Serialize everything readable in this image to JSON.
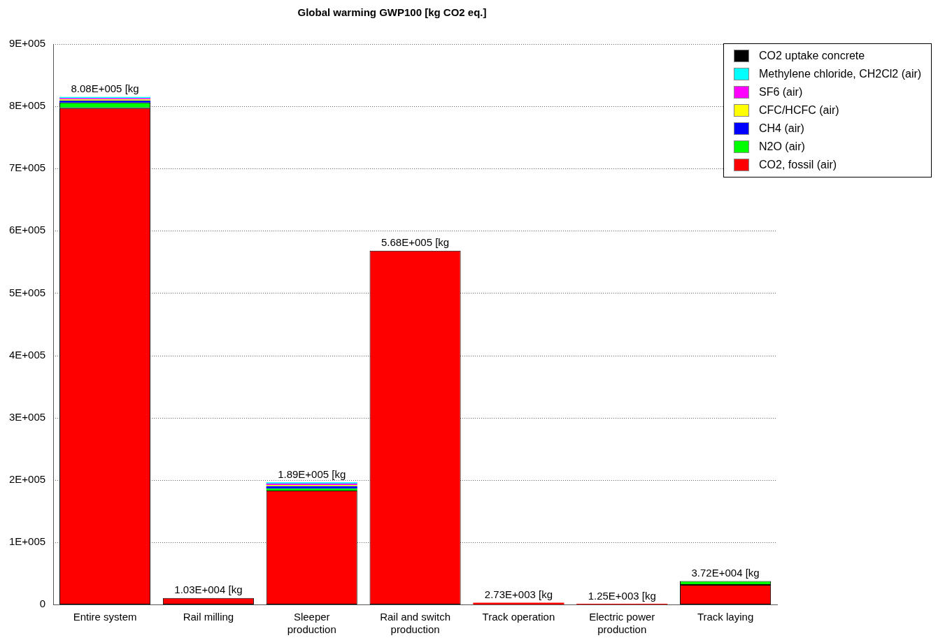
{
  "chart_data": {
    "type": "bar",
    "title": "Global warming GWP100 [kg CO2 eq.]",
    "stacked": true,
    "categories": [
      "Entire system",
      "Rail milling",
      "Sleeper production",
      "Rail and switch production",
      "Track operation",
      "Electric power production",
      "Track laying"
    ],
    "series": [
      {
        "name": "CO2, fossil (air)",
        "color": "#ff0000",
        "values": [
          797000,
          10300,
          183000,
          568000,
          2730,
          1250,
          31500
        ]
      },
      {
        "name": "N2O (air)",
        "color": "#00ff00",
        "values": [
          9000,
          null,
          3000,
          null,
          null,
          null,
          6000
        ]
      },
      {
        "name": "CH4 (air)",
        "color": "#0000ff",
        "values": [
          3000,
          null,
          4000,
          null,
          null,
          null,
          null
        ]
      },
      {
        "name": "CFC/HCFC (air)",
        "color": "#ffff00",
        "values": [
          2000,
          null,
          2000,
          null,
          null,
          null,
          null
        ]
      },
      {
        "name": "SF6 (air)",
        "color": "#ff00ff",
        "values": [
          2000,
          null,
          2000,
          null,
          null,
          null,
          null
        ]
      },
      {
        "name": "Methylene chloride, CH2Cl2 (air)",
        "color": "#00ffff",
        "values": [
          2000,
          null,
          2000,
          null,
          null,
          null,
          null
        ]
      },
      {
        "name": "CO2 uptake concrete",
        "color": "#000000",
        "values": [
          null,
          null,
          null,
          null,
          null,
          null,
          null
        ]
      }
    ],
    "totals": [
      "8.08E+005 [kg",
      "1.03E+004 [kg",
      "1.89E+005 [kg",
      "5.68E+005 [kg",
      "2.73E+003 [kg",
      "1.25E+003 [kg",
      "3.72E+004 [kg"
    ],
    "ylim": [
      0,
      900000
    ],
    "yticks": [
      {
        "value": 0,
        "label": "0"
      },
      {
        "value": 100000,
        "label": "1E+005"
      },
      {
        "value": 200000,
        "label": "2E+005"
      },
      {
        "value": 300000,
        "label": "3E+005"
      },
      {
        "value": 400000,
        "label": "4E+005"
      },
      {
        "value": 500000,
        "label": "5E+005"
      },
      {
        "value": 600000,
        "label": "6E+005"
      },
      {
        "value": 700000,
        "label": "7E+005"
      },
      {
        "value": 800000,
        "label": "8E+005"
      },
      {
        "value": 900000,
        "label": "9E+005"
      }
    ],
    "grid": "y",
    "legend": "top right"
  }
}
